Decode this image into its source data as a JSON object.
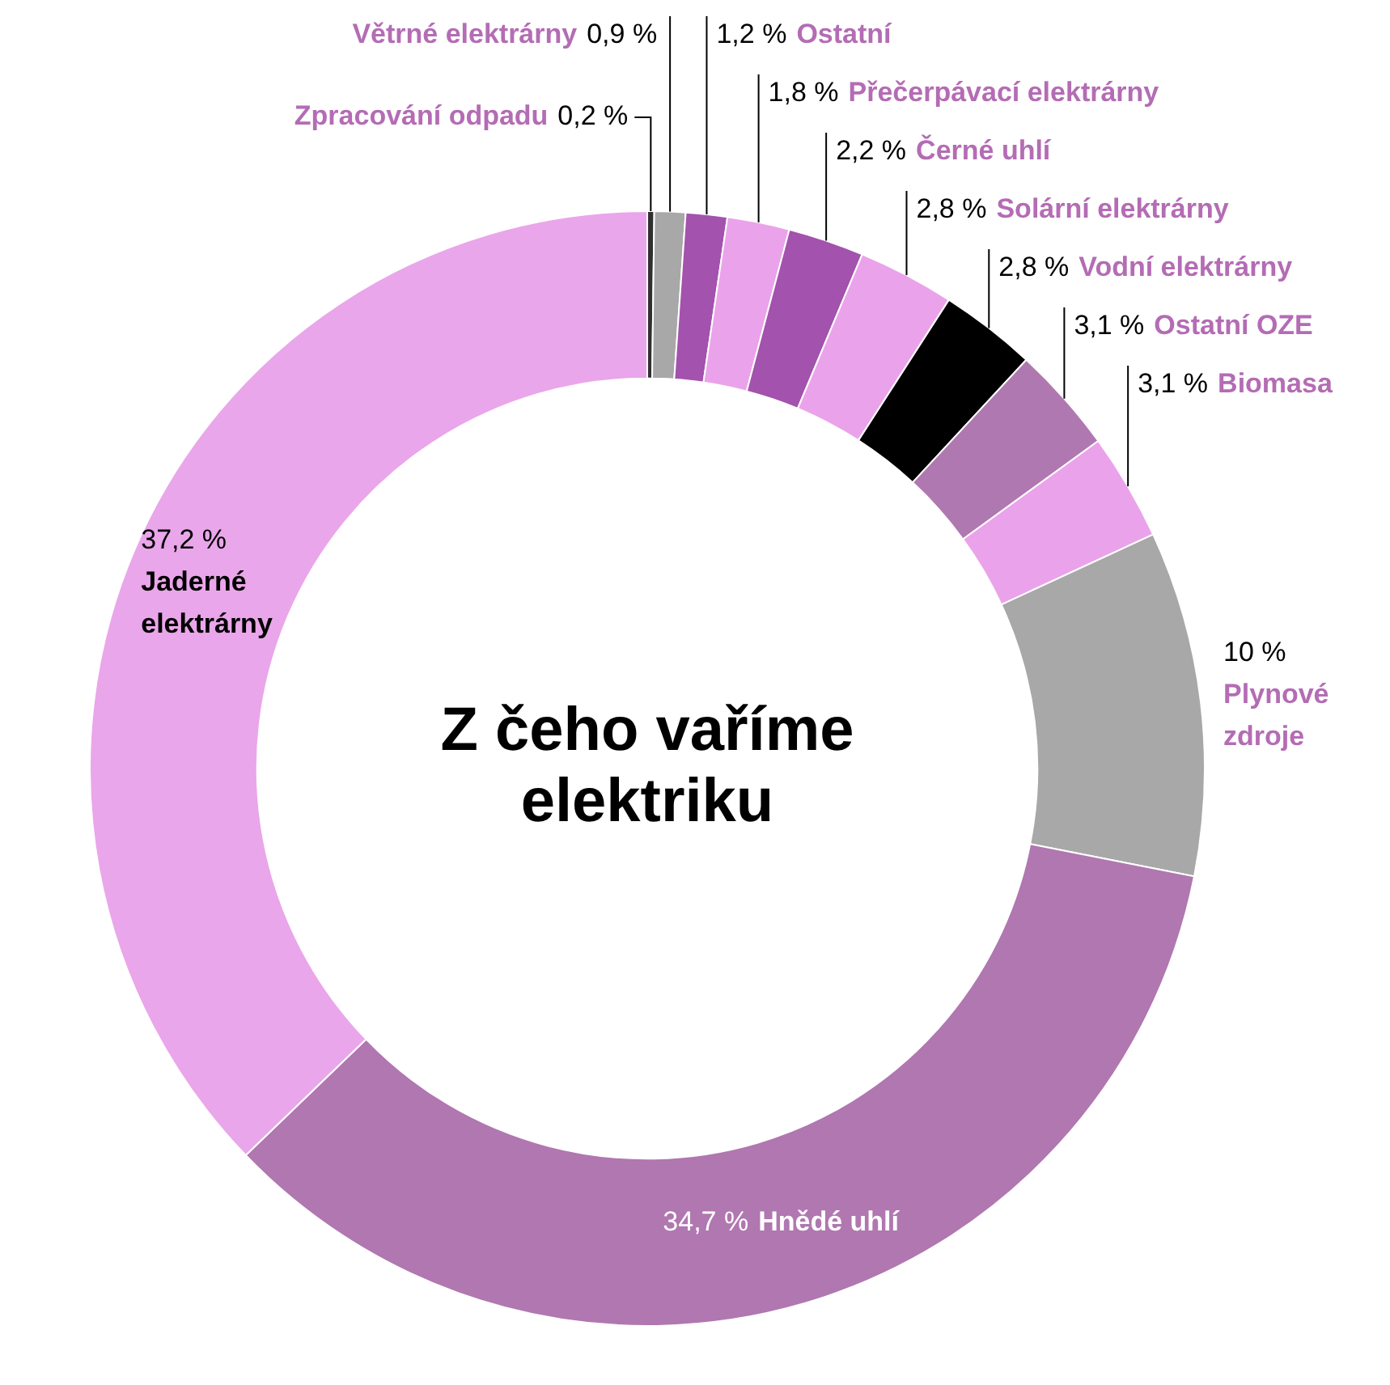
{
  "chart_data": {
    "type": "donut",
    "title": "Z čeho vaříme elektriku",
    "categories": [
      "Zpracování odpadu",
      "Větrné elektrárny",
      "Ostatní",
      "Přečerpávací elektrárny",
      "Černé uhlí",
      "Solární elektrárny",
      "Vodní elektrárny",
      "Ostatní OZE",
      "Biomasa",
      "Plynové zdroje",
      "Hnědé uhlí",
      "Jaderné elektrárny"
    ],
    "values": [
      0.2,
      0.9,
      1.2,
      1.8,
      2.2,
      2.8,
      2.8,
      3.1,
      3.1,
      10,
      34.7,
      37.2
    ],
    "colors": [
      "#303030",
      "#a8a8a8",
      "#a352ad",
      "#eaa3ea",
      "#a352ad",
      "#eaa3ea",
      "#000000",
      "#b078b0",
      "#eaa3ea",
      "#a8a8a8",
      "#b077b0",
      "#eaa6ea"
    ],
    "value_labels": [
      "0,2 %",
      "0,9 %",
      "1,2 %",
      "1,8 %",
      "2,2 %",
      "2,8 %",
      "2,8 %",
      "3,1 %",
      "3,1 %",
      "10 %",
      "34,7 %",
      "37,2 %"
    ],
    "legend": false
  }
}
